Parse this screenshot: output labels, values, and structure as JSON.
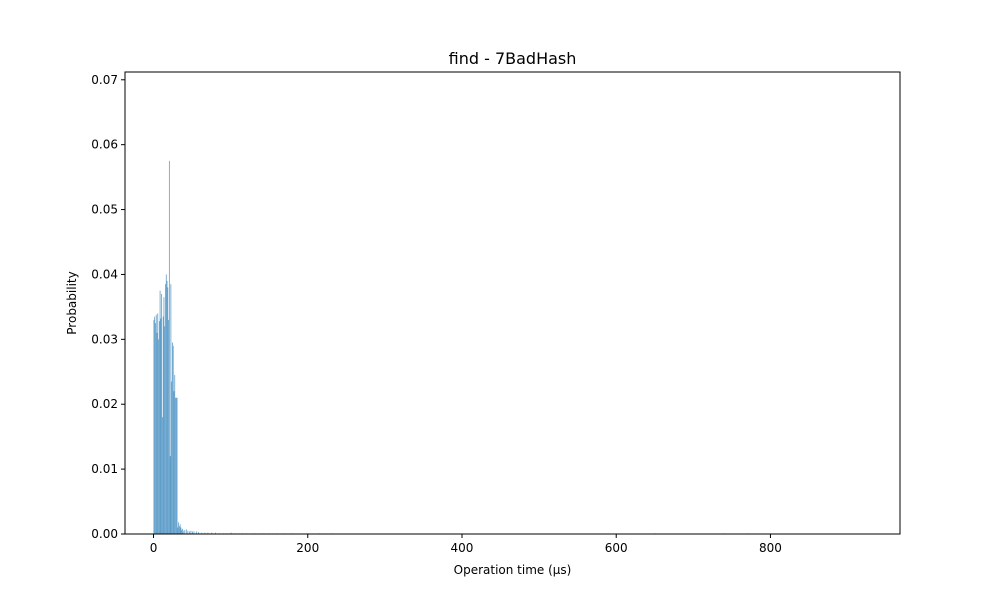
{
  "chart_data": {
    "type": "bar",
    "title": "find -  7BadHash",
    "xlabel": "Operation time (µs)",
    "ylabel": "Probability",
    "xlim": [
      -37,
      968
    ],
    "ylim": [
      0,
      0.0712
    ],
    "xticks": [
      0,
      200,
      400,
      600,
      800
    ],
    "xtick_labels": [
      "0",
      "200",
      "400",
      "600",
      "800"
    ],
    "yticks": [
      0.0,
      0.01,
      0.02,
      0.03,
      0.04,
      0.05,
      0.06,
      0.07
    ],
    "ytick_labels": [
      "0.00",
      "0.01",
      "0.02",
      "0.03",
      "0.04",
      "0.05",
      "0.06",
      "0.07"
    ],
    "bar_width": 1,
    "bar_color": "#5b9bc8",
    "grid": false,
    "legend": "none",
    "series": [
      {
        "x": [
          0,
          1,
          2,
          3,
          4,
          5,
          6,
          7,
          8,
          9,
          10,
          11,
          12,
          13,
          14,
          15,
          16,
          17,
          18,
          19,
          20,
          21,
          22,
          23,
          24,
          25,
          26,
          27,
          28,
          29,
          30,
          31,
          32,
          33,
          34,
          35,
          36,
          37,
          38,
          40,
          42,
          44,
          46,
          48,
          50,
          52,
          55,
          58,
          62,
          66,
          70,
          75,
          80,
          85,
          90,
          95,
          100,
          105,
          110,
          115,
          120,
          130,
          140,
          150,
          160,
          170,
          180,
          200,
          215,
          230,
          650,
          740,
          770
        ],
        "values": [
          0.033,
          0.0335,
          0.0325,
          0.0338,
          0.031,
          0.034,
          0.03,
          0.0328,
          0.0375,
          0.0332,
          0.037,
          0.018,
          0.0335,
          0.0365,
          0.032,
          0.0385,
          0.04,
          0.039,
          0.038,
          0.033,
          0.0575,
          0.012,
          0.0385,
          0.0235,
          0.0295,
          0.029,
          0.022,
          0.0245,
          0.021,
          0.021,
          0.021,
          0.001,
          0.0018,
          0.0012,
          0.0015,
          0.001,
          0.0006,
          0.0008,
          0.0005,
          0.0006,
          0.0007,
          0.0005,
          0.0004,
          0.0005,
          0.0004,
          0.0004,
          0.0004,
          0.0003,
          0.0002,
          0.0002,
          0.0002,
          0.0002,
          0.0002,
          0.0001,
          0.0001,
          0.0001,
          0.0002,
          0.0001,
          0.0001,
          0.0001,
          0.0001,
          0.0001,
          0.0001,
          0.0001,
          0.0001,
          0.0001,
          0.0001,
          0.0001,
          0.0001,
          0.0001,
          0.0001,
          0.0001,
          0.0001
        ]
      }
    ]
  }
}
